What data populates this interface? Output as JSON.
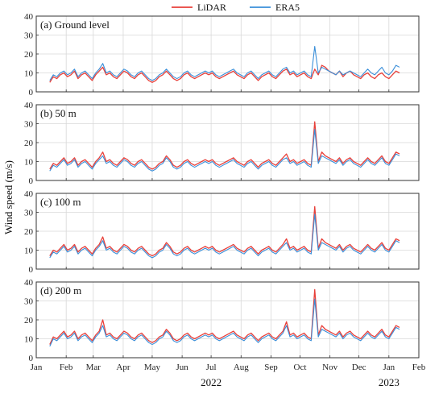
{
  "chart_data": {
    "type": "line",
    "ylabel": "Wind speed (m/s)",
    "legend": {
      "placement": "top-center",
      "entries": [
        {
          "name": "LiDAR",
          "color": "#e8403a"
        },
        {
          "name": "ERA5",
          "color": "#3a8fd9"
        }
      ]
    },
    "xaxis": {
      "range": [
        "2022-01-01",
        "2023-02-01"
      ],
      "month_ticks": [
        "Jan",
        "Feb",
        "Mar",
        "Apr",
        "May",
        "Jun",
        "Jul",
        "Aug",
        "Sep",
        "Oct",
        "Nov",
        "Dec",
        "Jan",
        "Feb"
      ],
      "year_labels": [
        "2022",
        "2023"
      ],
      "data_range": [
        "2022-01-15",
        "2023-01-12"
      ]
    },
    "grid": true,
    "panels": [
      {
        "label": "(a) Ground level",
        "ylim": [
          0,
          40
        ],
        "yticks": [
          "0",
          "10",
          "20",
          "30",
          "40"
        ],
        "series": [
          {
            "name": "LiDAR",
            "values": [
              5,
              8,
              7,
              9,
              10,
              8,
              9,
              11,
              7,
              9,
              10,
              8,
              6,
              9,
              11,
              13,
              9,
              10,
              8,
              7,
              9,
              11,
              10,
              8,
              7,
              9,
              10,
              8,
              6,
              5,
              6,
              8,
              9,
              11,
              9,
              7,
              6,
              7,
              9,
              10,
              8,
              7,
              8,
              9,
              10,
              9,
              10,
              8,
              7,
              8,
              9,
              10,
              11,
              9,
              8,
              7,
              9,
              10,
              8,
              6,
              8,
              9,
              10,
              8,
              7,
              9,
              11,
              12,
              9,
              10,
              8,
              9,
              10,
              8,
              7,
              12,
              9,
              14,
              13,
              11,
              10,
              9,
              11,
              8,
              10,
              11,
              9,
              8,
              7,
              9,
              10,
              8,
              7,
              9,
              10,
              8,
              7,
              9,
              11,
              10
            ]
          },
          {
            "name": "ERA5",
            "values": [
              6,
              9,
              8,
              10,
              11,
              9,
              10,
              12,
              8,
              10,
              11,
              9,
              7,
              10,
              12,
              15,
              10,
              11,
              9,
              8,
              10,
              12,
              11,
              9,
              8,
              10,
              11,
              9,
              7,
              6,
              7,
              9,
              10,
              12,
              10,
              8,
              7,
              8,
              10,
              11,
              9,
              8,
              9,
              10,
              11,
              10,
              11,
              9,
              8,
              9,
              10,
              11,
              12,
              10,
              9,
              8,
              10,
              11,
              9,
              7,
              9,
              10,
              11,
              9,
              8,
              10,
              12,
              13,
              10,
              11,
              9,
              10,
              11,
              9,
              8,
              24,
              10,
              13,
              12,
              11,
              10,
              9,
              11,
              9,
              10,
              11,
              10,
              9,
              8,
              10,
              12,
              10,
              9,
              11,
              13,
              10,
              9,
              11,
              14,
              13
            ]
          }
        ]
      },
      {
        "label": "(b) 50 m",
        "ylim": [
          0,
          40
        ],
        "yticks": [
          "0",
          "10",
          "20",
          "30",
          "40"
        ],
        "series": [
          {
            "name": "LiDAR",
            "values": [
              6,
              9,
              8,
              10,
              12,
              9,
              10,
              12,
              8,
              10,
              11,
              9,
              7,
              10,
              12,
              15,
              10,
              11,
              9,
              8,
              10,
              12,
              11,
              9,
              8,
              10,
              11,
              9,
              7,
              6,
              7,
              9,
              10,
              13,
              11,
              8,
              7,
              8,
              10,
              11,
              9,
              8,
              9,
              10,
              11,
              10,
              11,
              9,
              8,
              9,
              10,
              11,
              12,
              10,
              9,
              8,
              10,
              11,
              9,
              7,
              9,
              10,
              11,
              9,
              8,
              10,
              12,
              14,
              10,
              11,
              9,
              10,
              11,
              9,
              8,
              31,
              10,
              15,
              13,
              12,
              11,
              10,
              12,
              9,
              11,
              12,
              10,
              9,
              8,
              10,
              12,
              10,
              9,
              11,
              13,
              10,
              9,
              12,
              15,
              14
            ]
          },
          {
            "name": "ERA5",
            "values": [
              5,
              8,
              7,
              9,
              11,
              8,
              9,
              11,
              7,
              9,
              10,
              8,
              6,
              9,
              11,
              13,
              9,
              10,
              8,
              7,
              9,
              11,
              10,
              8,
              7,
              9,
              10,
              8,
              6,
              5,
              6,
              8,
              9,
              12,
              10,
              7,
              6,
              7,
              9,
              10,
              8,
              7,
              8,
              9,
              10,
              9,
              10,
              8,
              7,
              8,
              9,
              10,
              11,
              9,
              8,
              7,
              9,
              10,
              8,
              6,
              8,
              9,
              10,
              8,
              7,
              9,
              11,
              12,
              9,
              10,
              8,
              9,
              10,
              8,
              7,
              27,
              9,
              13,
              12,
              11,
              10,
              9,
              11,
              8,
              10,
              11,
              9,
              8,
              7,
              9,
              11,
              9,
              8,
              10,
              12,
              9,
              8,
              11,
              14,
              13
            ]
          }
        ]
      },
      {
        "label": "(c) 100 m",
        "ylim": [
          0,
          40
        ],
        "yticks": [
          "0",
          "10",
          "20",
          "30",
          "40"
        ],
        "series": [
          {
            "name": "LiDAR",
            "values": [
              7,
              10,
              9,
              11,
              13,
              10,
              11,
              13,
              9,
              11,
              12,
              10,
              8,
              11,
              13,
              17,
              11,
              12,
              10,
              9,
              11,
              13,
              12,
              10,
              9,
              11,
              12,
              10,
              8,
              7,
              8,
              10,
              11,
              14,
              12,
              9,
              8,
              9,
              11,
              12,
              10,
              9,
              10,
              11,
              12,
              11,
              12,
              10,
              9,
              10,
              11,
              12,
              13,
              11,
              10,
              9,
              11,
              12,
              10,
              8,
              10,
              11,
              12,
              10,
              9,
              11,
              13,
              16,
              11,
              12,
              10,
              11,
              12,
              10,
              9,
              33,
              11,
              16,
              14,
              13,
              12,
              11,
              13,
              10,
              12,
              13,
              11,
              10,
              9,
              11,
              13,
              11,
              10,
              12,
              14,
              11,
              10,
              13,
              16,
              15
            ]
          },
          {
            "name": "ERA5",
            "values": [
              6,
              9,
              8,
              10,
              12,
              9,
              10,
              12,
              8,
              10,
              11,
              9,
              7,
              10,
              12,
              15,
              10,
              11,
              9,
              8,
              10,
              12,
              11,
              9,
              8,
              10,
              11,
              9,
              7,
              6,
              7,
              9,
              10,
              13,
              11,
              8,
              7,
              8,
              10,
              11,
              9,
              8,
              9,
              10,
              11,
              10,
              11,
              9,
              8,
              9,
              10,
              11,
              12,
              10,
              9,
              8,
              10,
              11,
              9,
              7,
              9,
              10,
              11,
              9,
              8,
              10,
              12,
              14,
              10,
              11,
              9,
              10,
              11,
              9,
              8,
              29,
              10,
              14,
              13,
              12,
              11,
              10,
              12,
              9,
              11,
              12,
              10,
              9,
              8,
              10,
              12,
              10,
              9,
              11,
              13,
              10,
              9,
              12,
              15,
              14
            ]
          }
        ]
      },
      {
        "label": "(d) 200 m",
        "ylim": [
          0,
          40
        ],
        "yticks": [
          "0",
          "10",
          "20",
          "30",
          "40"
        ],
        "series": [
          {
            "name": "LiDAR",
            "values": [
              7,
              11,
              10,
              12,
              14,
              11,
              12,
              14,
              10,
              12,
              13,
              11,
              9,
              12,
              14,
              20,
              12,
              13,
              11,
              10,
              12,
              14,
              13,
              11,
              10,
              12,
              13,
              11,
              9,
              8,
              9,
              11,
              12,
              15,
              13,
              10,
              9,
              10,
              12,
              13,
              11,
              10,
              11,
              12,
              13,
              12,
              13,
              11,
              10,
              11,
              12,
              13,
              14,
              12,
              11,
              10,
              12,
              13,
              11,
              9,
              11,
              12,
              13,
              11,
              10,
              12,
              14,
              19,
              12,
              13,
              11,
              12,
              13,
              11,
              10,
              36,
              12,
              17,
              15,
              14,
              13,
              12,
              14,
              11,
              13,
              14,
              12,
              11,
              10,
              12,
              14,
              12,
              11,
              13,
              15,
              12,
              11,
              14,
              17,
              16
            ]
          },
          {
            "name": "ERA5",
            "values": [
              6,
              10,
              9,
              11,
              13,
              10,
              11,
              13,
              9,
              11,
              12,
              10,
              8,
              11,
              13,
              17,
              11,
              12,
              10,
              9,
              11,
              13,
              12,
              10,
              9,
              11,
              12,
              10,
              8,
              7,
              8,
              10,
              11,
              14,
              12,
              9,
              8,
              9,
              11,
              12,
              10,
              9,
              10,
              11,
              12,
              11,
              12,
              10,
              9,
              10,
              11,
              12,
              13,
              11,
              10,
              9,
              11,
              12,
              10,
              8,
              10,
              11,
              12,
              10,
              9,
              11,
              13,
              17,
              11,
              12,
              10,
              11,
              12,
              10,
              9,
              31,
              11,
              15,
              14,
              13,
              12,
              11,
              13,
              10,
              12,
              13,
              11,
              10,
              9,
              11,
              13,
              11,
              10,
              12,
              14,
              11,
              10,
              13,
              16,
              15
            ]
          }
        ]
      }
    ]
  }
}
